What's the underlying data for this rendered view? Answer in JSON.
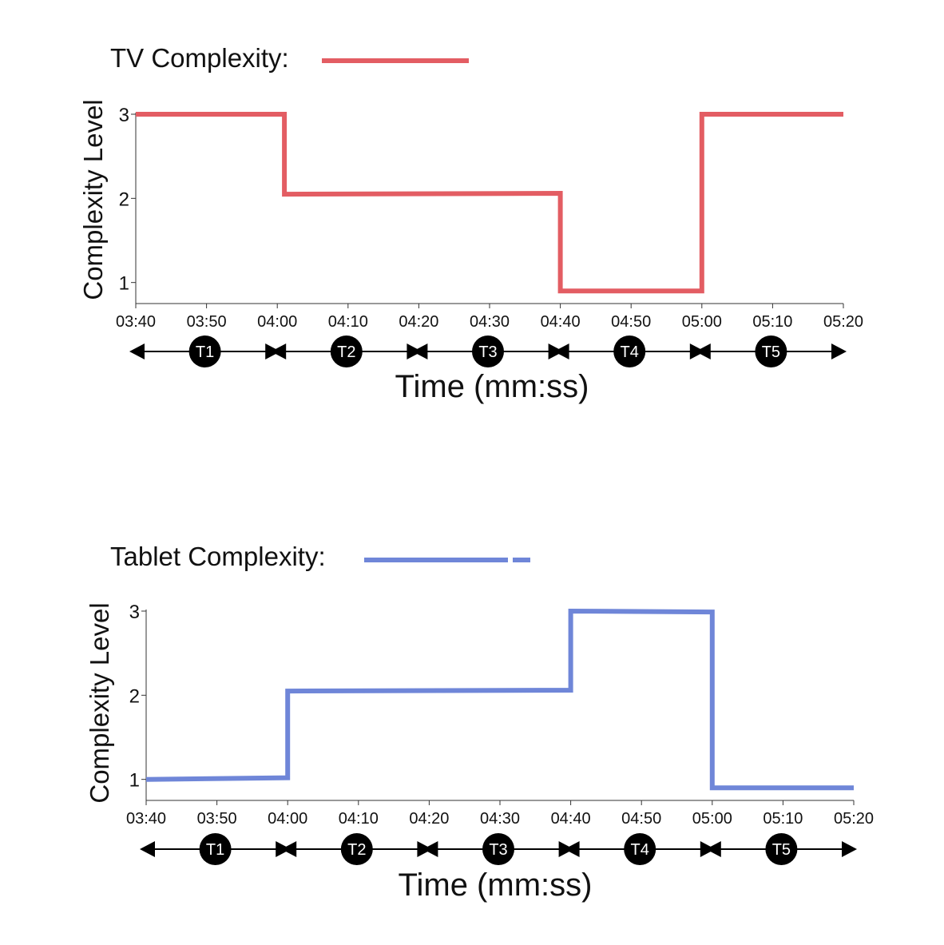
{
  "chart_data": [
    {
      "type": "line",
      "legend_label": "TV Complexity:",
      "ylabel": "Complexity Level",
      "xlabel": "Time (mm:ss)",
      "x_tick_labels": [
        "03:40",
        "03:50",
        "04:00",
        "04:10",
        "04:20",
        "04:30",
        "04:40",
        "04:50",
        "05:00",
        "05:10",
        "05:20"
      ],
      "y_tick_labels": [
        "1",
        "2",
        "3"
      ],
      "xlim": [
        "03:40",
        "05:20"
      ],
      "ylim": [
        0.75,
        3
      ],
      "grid": false,
      "legend_position": "top-left",
      "series": [
        {
          "color": "#e35d63",
          "line_style": "solid",
          "x": [
            "03:40",
            "04:01",
            "04:01",
            "04:40",
            "04:40",
            "05:00",
            "05:00",
            "05:20"
          ],
          "y": [
            3.0,
            3.0,
            2.05,
            2.06,
            0.9,
            0.9,
            3.0,
            3.0
          ]
        }
      ],
      "phases": [
        "T1",
        "T2",
        "T3",
        "T4",
        "T5"
      ]
    },
    {
      "type": "line",
      "legend_label": "Tablet Complexity:",
      "ylabel": "Complexity Level",
      "xlabel": "Time (mm:ss)",
      "x_tick_labels": [
        "03:40",
        "03:50",
        "04:00",
        "04:10",
        "04:20",
        "04:30",
        "04:40",
        "04:50",
        "05:00",
        "05:10",
        "05:20"
      ],
      "y_tick_labels": [
        "1",
        "2",
        "3"
      ],
      "xlim": [
        "03:40",
        "05:20"
      ],
      "ylim": [
        0.75,
        3
      ],
      "grid": false,
      "legend_position": "top-left",
      "series": [
        {
          "color": "#6f86d8",
          "line_style": "dashed",
          "x": [
            "03:40",
            "04:00",
            "04:00",
            "04:40",
            "04:40",
            "05:00",
            "05:00",
            "05:20"
          ],
          "y": [
            1.0,
            1.02,
            2.05,
            2.06,
            3.0,
            2.99,
            0.9,
            0.9
          ]
        }
      ],
      "phases": [
        "T1",
        "T2",
        "T3",
        "T4",
        "T5"
      ]
    }
  ]
}
